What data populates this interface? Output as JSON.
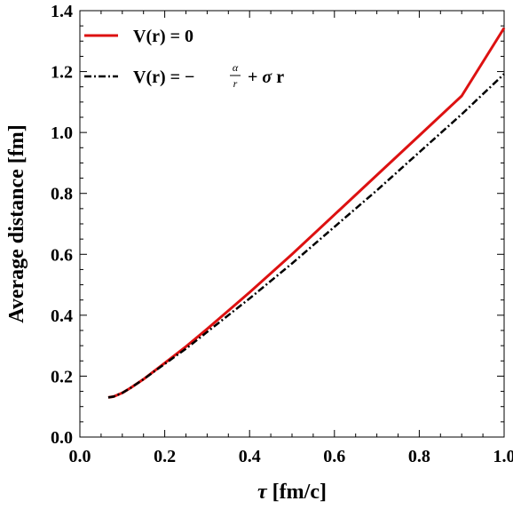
{
  "chart_data": {
    "type": "line",
    "xlabel": {
      "symbol": "τ",
      "rest": " [fm/c]"
    },
    "ylabel": "Average distance [fm]",
    "xlim": [
      0.0,
      1.0
    ],
    "ylim": [
      0.0,
      1.4
    ],
    "x_ticks": [
      "0.0",
      "0.2",
      "0.4",
      "0.6",
      "0.8",
      "1.0"
    ],
    "y_ticks": [
      "0.0",
      "0.2",
      "0.4",
      "0.6",
      "0.8",
      "1.0",
      "1.2",
      "1.4"
    ],
    "legend_position": "top-left",
    "grid": false,
    "series": [
      {
        "name": "V(r) = 0",
        "color": "#dd1111",
        "style": "solid",
        "x": [
          0.067,
          0.08,
          0.1,
          0.12,
          0.15,
          0.2,
          0.25,
          0.3,
          0.4,
          0.5,
          0.6,
          0.7,
          0.8,
          0.9,
          1.0
        ],
        "y": [
          0.13,
          0.133,
          0.145,
          0.162,
          0.19,
          0.243,
          0.297,
          0.355,
          0.475,
          0.6,
          0.73,
          0.86,
          0.99,
          1.12,
          1.343
        ]
      },
      {
        "name": "V(r) = −α/r + σ r",
        "legend_parts": {
          "lhs": "V(r) = −",
          "num": "α",
          "den": "r",
          "op": " + ",
          "sigma": "σ",
          "tail": " r"
        },
        "color": "#000000",
        "style": "dashdot",
        "x": [
          0.067,
          0.08,
          0.1,
          0.12,
          0.15,
          0.2,
          0.25,
          0.3,
          0.4,
          0.5,
          0.6,
          0.7,
          0.8,
          0.9,
          1.0
        ],
        "y": [
          0.13,
          0.133,
          0.145,
          0.162,
          0.19,
          0.24,
          0.29,
          0.345,
          0.455,
          0.57,
          0.69,
          0.81,
          0.935,
          1.06,
          1.192
        ]
      }
    ]
  }
}
